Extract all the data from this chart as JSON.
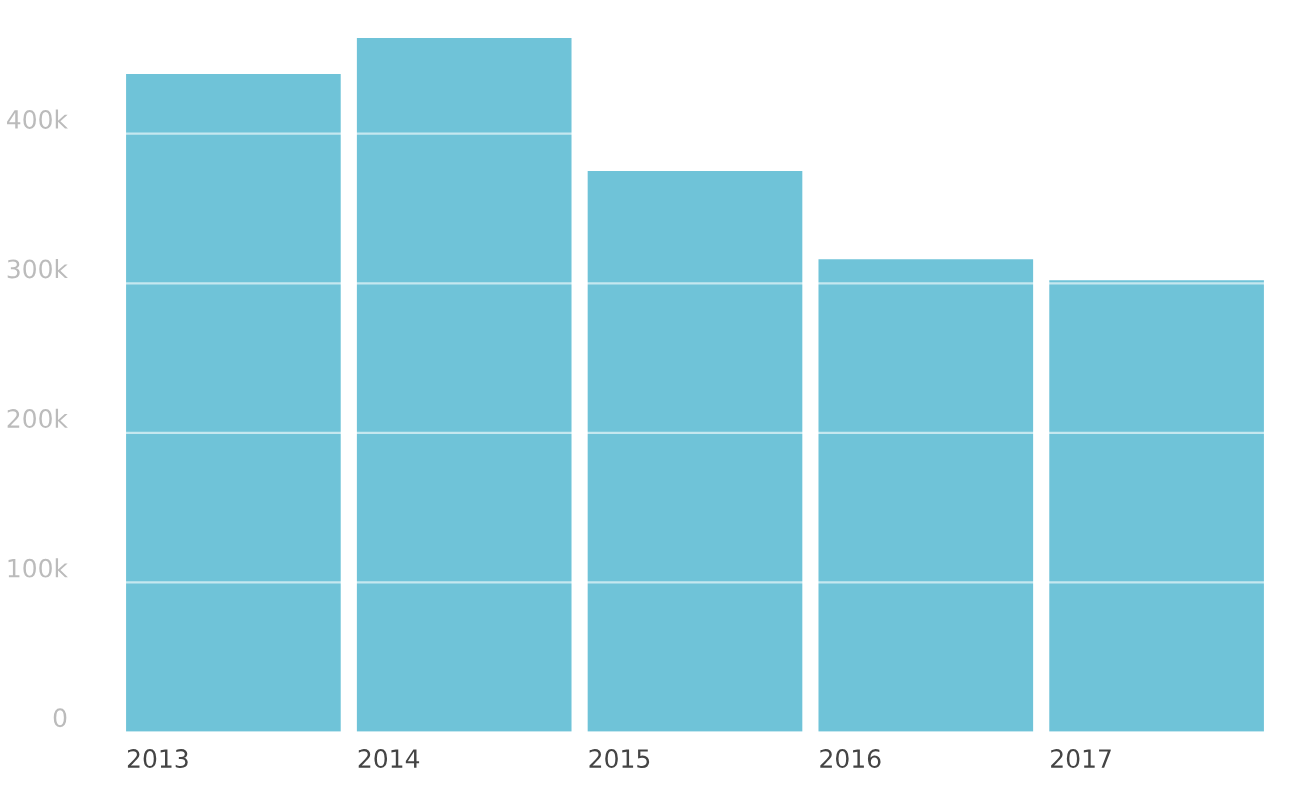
{
  "chart_data": {
    "type": "bar",
    "categories": [
      "2013",
      "2014",
      "2015",
      "2016",
      "2017"
    ],
    "values": [
      440000,
      464000,
      375000,
      316000,
      302000
    ],
    "color": "#6fc3d8",
    "ylim": [
      0,
      464000
    ],
    "yticks": [
      {
        "value": 0,
        "label": "0"
      },
      {
        "value": 100000,
        "label": "100k"
      },
      {
        "value": 200000,
        "label": "200k"
      },
      {
        "value": 300000,
        "label": "300k"
      },
      {
        "value": 400000,
        "label": "400k"
      }
    ],
    "grid": "y"
  }
}
